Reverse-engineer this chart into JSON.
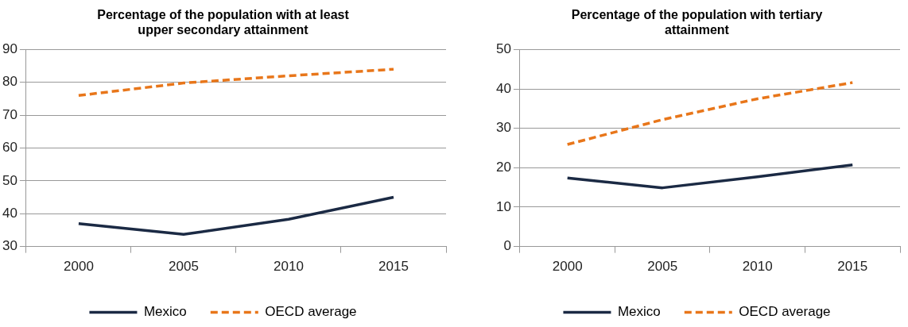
{
  "chart_data": [
    {
      "type": "line",
      "title": "Percentage of the population with at least upper secondary attainment",
      "categories": [
        "2000",
        "2005",
        "2010",
        "2015"
      ],
      "ylim": [
        30,
        90
      ],
      "yticks": [
        30,
        40,
        50,
        60,
        70,
        80,
        90
      ],
      "grid": "y",
      "legend": "bottom",
      "marker": "none",
      "series": [
        {
          "name": "Mexico",
          "color": "#1b2a44",
          "line_style": "solid",
          "values": [
            37,
            33.7,
            38.3,
            45
          ]
        },
        {
          "name": "OECD average",
          "color": "#e8761a",
          "line_style": "dashed",
          "values": [
            76,
            79.8,
            82,
            84
          ]
        }
      ]
    },
    {
      "type": "line",
      "title": "Percentage of the population with tertiary attainment",
      "categories": [
        "2000",
        "2005",
        "2010",
        "2015"
      ],
      "ylim": [
        0,
        50
      ],
      "yticks": [
        0,
        10,
        20,
        30,
        40,
        50
      ],
      "grid": "y",
      "legend": "bottom",
      "marker": "none",
      "series": [
        {
          "name": "Mexico",
          "color": "#1b2a44",
          "line_style": "solid",
          "values": [
            17.4,
            14.9,
            17.7,
            20.7
          ]
        },
        {
          "name": "OECD average",
          "color": "#e8761a",
          "line_style": "dashed",
          "values": [
            25.9,
            32.2,
            37.5,
            41.6
          ]
        }
      ]
    }
  ]
}
